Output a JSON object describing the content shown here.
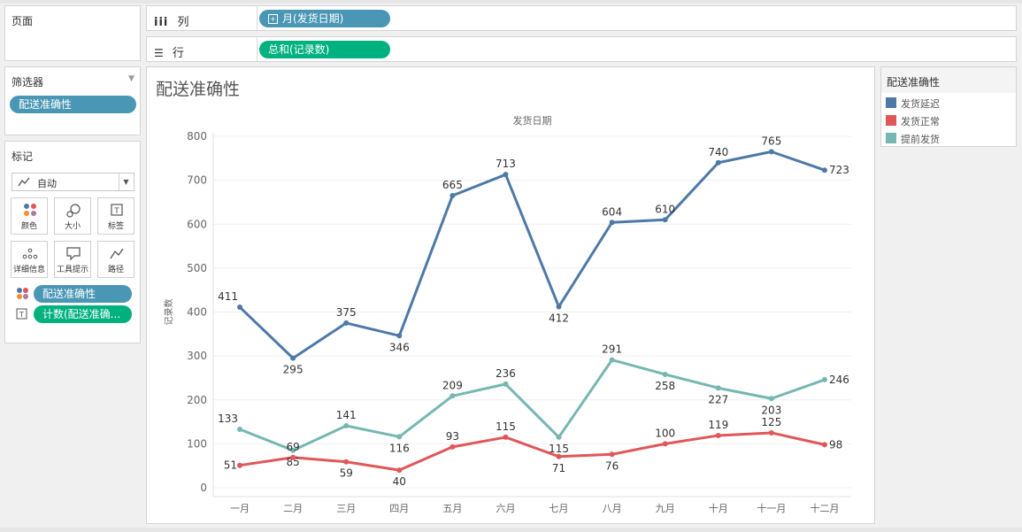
{
  "pages_panel": {
    "title": "页面"
  },
  "filters_panel": {
    "title": "筛选器",
    "pill": "配送准确性"
  },
  "marks_panel": {
    "title": "标记",
    "mark_type": "自动",
    "buttons": [
      "颜色",
      "大小",
      "标签",
      "详细信息",
      "工具提示",
      "路径"
    ],
    "color_pill": "配送准确性",
    "label_pill": "计数(配送准确..."
  },
  "columns_shelf": {
    "icon": "iii",
    "label": "列",
    "pill": "月(发货日期)"
  },
  "rows_shelf": {
    "label": "行",
    "pill": "总和(记录数)"
  },
  "legend": {
    "title": "配送准确性",
    "items": [
      {
        "label": "发货延迟",
        "color": "#4e79a7"
      },
      {
        "label": "发货正常",
        "color": "#e15759"
      },
      {
        "label": "提前发货",
        "color": "#76b7b2"
      }
    ]
  },
  "chart_data": {
    "type": "line",
    "title": "配送准确性",
    "header": "发货日期",
    "xlabel": "",
    "ylabel": "记录数",
    "ylim": [
      0,
      800
    ],
    "yticks": [
      "0",
      "100",
      "200",
      "300",
      "400",
      "500",
      "600",
      "700",
      "800"
    ],
    "categories": [
      "一月",
      "二月",
      "三月",
      "四月",
      "五月",
      "六月",
      "七月",
      "八月",
      "九月",
      "十月",
      "十一月",
      "十二月"
    ],
    "series": [
      {
        "name": "发货延迟",
        "color": "#4e79a7",
        "values": [
          411,
          295,
          375,
          346,
          665,
          713,
          412,
          604,
          610,
          740,
          765,
          723
        ]
      },
      {
        "name": "提前发货",
        "color": "#76b7b2",
        "values": [
          133,
          85,
          141,
          116,
          209,
          236,
          115,
          291,
          258,
          227,
          203,
          246
        ]
      },
      {
        "name": "发货正常",
        "color": "#e15759",
        "values": [
          51,
          69,
          59,
          40,
          93,
          115,
          71,
          76,
          100,
          119,
          125,
          98
        ]
      }
    ]
  }
}
